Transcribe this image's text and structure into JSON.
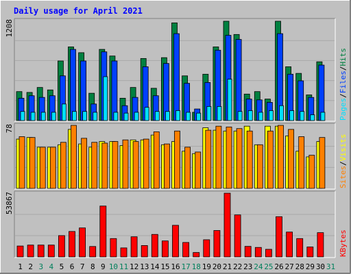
{
  "title": "Daily usage for April 2021",
  "colors": {
    "background": "#c0c0c0",
    "plot_background": "#c0c0c0",
    "title_text": "#0000ff",
    "hits": "#008040",
    "files": "#0040ff",
    "pages": "#00e0ff",
    "visits": "#ffff00",
    "sites": "#ff8000",
    "kbytes": "#ff0000",
    "weekend_label": "#00805c",
    "weekday_label": "#000000"
  },
  "chart_data": [
    {
      "type": "bar",
      "panel": "top",
      "ymax_label": "1208",
      "ymax": 1208,
      "legend": [
        "Pages",
        "/",
        "Files",
        "/",
        "Hits"
      ],
      "categories": [
        "1",
        "2",
        "3",
        "4",
        "5",
        "6",
        "7",
        "8",
        "9",
        "10",
        "11",
        "12",
        "13",
        "14",
        "15",
        "16",
        "17",
        "18",
        "19",
        "20",
        "21",
        "22",
        "23",
        "24",
        "25",
        "26",
        "27",
        "28",
        "29",
        "30",
        "31"
      ],
      "series": [
        {
          "name": "Hits",
          "values": [
            350,
            340,
            400,
            370,
            720,
            890,
            820,
            330,
            860,
            780,
            270,
            400,
            750,
            390,
            760,
            1180,
            540,
            100,
            560,
            890,
            1200,
            1040,
            320,
            350,
            260,
            1200,
            650,
            570,
            310,
            710,
            0
          ]
        },
        {
          "name": "Files",
          "values": [
            270,
            300,
            280,
            300,
            540,
            860,
            720,
            200,
            830,
            720,
            180,
            280,
            650,
            300,
            690,
            1050,
            450,
            140,
            460,
            850,
            1030,
            980,
            260,
            250,
            220,
            1050,
            560,
            480,
            280,
            670,
            0
          ]
        },
        {
          "name": "Pages",
          "values": [
            110,
            100,
            100,
            100,
            200,
            110,
            110,
            100,
            530,
            100,
            90,
            100,
            160,
            110,
            110,
            120,
            100,
            90,
            170,
            170,
            500,
            110,
            120,
            100,
            120,
            180,
            120,
            110,
            70,
            100,
            0
          ]
        }
      ]
    },
    {
      "type": "bar",
      "panel": "middle",
      "ymax_label": "78",
      "ymax": 78,
      "legend": [
        "Sites",
        "/",
        "Visits"
      ],
      "categories": [
        "1",
        "2",
        "3",
        "4",
        "5",
        "6",
        "7",
        "8",
        "9",
        "10",
        "11",
        "12",
        "13",
        "14",
        "15",
        "16",
        "17",
        "18",
        "19",
        "20",
        "21",
        "22",
        "23",
        "24",
        "25",
        "26",
        "27",
        "28",
        "29",
        "30",
        "31"
      ],
      "series": [
        {
          "name": "Visits",
          "values": [
            61,
            63,
            51,
            51,
            54,
            73,
            55,
            51,
            58,
            58,
            53,
            60,
            60,
            66,
            54,
            58,
            46,
            43,
            75,
            72,
            71,
            71,
            77,
            54,
            77,
            77,
            65,
            46,
            39,
            58,
            0
          ]
        },
        {
          "name": "Sites",
          "values": [
            64,
            63,
            51,
            51,
            57,
            78,
            62,
            57,
            56,
            58,
            60,
            58,
            61,
            70,
            55,
            71,
            51,
            45,
            72,
            77,
            76,
            74,
            71,
            54,
            71,
            78,
            73,
            64,
            41,
            63,
            0
          ]
        }
      ]
    },
    {
      "type": "bar",
      "panel": "bottom",
      "ymax_label": "53867",
      "ymax": 53867,
      "legend": [
        "KBytes"
      ],
      "categories": [
        "1",
        "2",
        "3",
        "4",
        "5",
        "6",
        "7",
        "8",
        "9",
        "10",
        "11",
        "12",
        "13",
        "14",
        "15",
        "16",
        "17",
        "18",
        "19",
        "20",
        "21",
        "22",
        "23",
        "24",
        "25",
        "26",
        "27",
        "28",
        "29",
        "30",
        "31"
      ],
      "series": [
        {
          "name": "KBytes",
          "values": [
            9200,
            10000,
            10000,
            10000,
            18000,
            21500,
            24500,
            8800,
            43000,
            15500,
            7600,
            17000,
            9600,
            19000,
            13500,
            26700,
            12200,
            3700,
            14500,
            22300,
            53867,
            35500,
            8900,
            8000,
            6400,
            34000,
            21000,
            15500,
            8400,
            20500,
            0
          ]
        }
      ]
    }
  ],
  "x_labels": [
    {
      "text": "1",
      "weekend": false
    },
    {
      "text": "2",
      "weekend": false
    },
    {
      "text": "3",
      "weekend": true
    },
    {
      "text": "4",
      "weekend": true
    },
    {
      "text": "5",
      "weekend": false
    },
    {
      "text": "6",
      "weekend": false
    },
    {
      "text": "7",
      "weekend": false
    },
    {
      "text": "8",
      "weekend": false
    },
    {
      "text": "9",
      "weekend": false
    },
    {
      "text": "10",
      "weekend": true
    },
    {
      "text": "11",
      "weekend": true
    },
    {
      "text": "12",
      "weekend": false
    },
    {
      "text": "13",
      "weekend": false
    },
    {
      "text": "14",
      "weekend": false
    },
    {
      "text": "15",
      "weekend": false
    },
    {
      "text": "16",
      "weekend": false
    },
    {
      "text": "17",
      "weekend": true
    },
    {
      "text": "18",
      "weekend": true
    },
    {
      "text": "19",
      "weekend": false
    },
    {
      "text": "20",
      "weekend": false
    },
    {
      "text": "21",
      "weekend": false
    },
    {
      "text": "22",
      "weekend": false
    },
    {
      "text": "23",
      "weekend": false
    },
    {
      "text": "24",
      "weekend": true
    },
    {
      "text": "25",
      "weekend": true
    },
    {
      "text": "26",
      "weekend": false
    },
    {
      "text": "27",
      "weekend": false
    },
    {
      "text": "28",
      "weekend": false
    },
    {
      "text": "29",
      "weekend": false
    },
    {
      "text": "30",
      "weekend": false
    },
    {
      "text": "31",
      "weekend": true
    }
  ]
}
